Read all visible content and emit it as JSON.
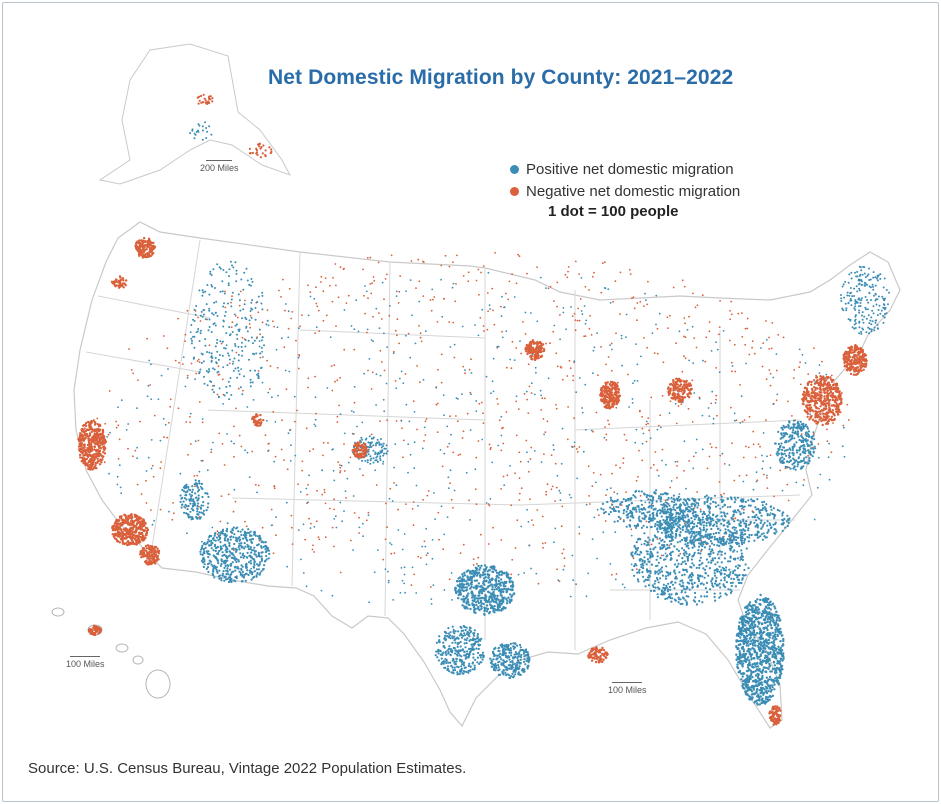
{
  "title": "Net Domestic Migration by County: 2021–2022",
  "legend": {
    "positive_label": "Positive net domestic migration",
    "negative_label": "Negative net domestic migration",
    "dot_note": "1 dot = 100 people"
  },
  "colors": {
    "positive": "#3b8db5",
    "negative": "#d9603b",
    "land": "#ffffff",
    "borders": "#c9c9c9",
    "title": "#2a6ca8"
  },
  "scale_bars": {
    "alaska": "200 Miles",
    "hawaii": "100 Miles",
    "mainland": "100 Miles"
  },
  "source": "Source: U.S. Census Bureau, Vintage 2022 Population Estimates."
}
